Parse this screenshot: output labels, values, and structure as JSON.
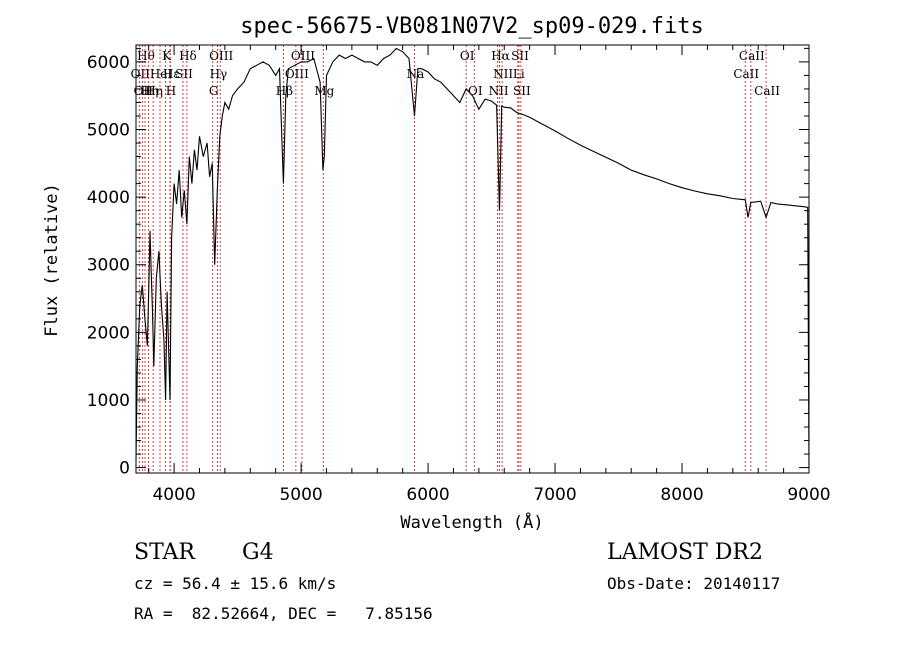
{
  "chart_data": {
    "type": "line",
    "title": "spec-56675-VB081N07V2_sp09-029.fits",
    "xlabel": "Wavelength (Å)",
    "ylabel": "Flux (relative)",
    "xlim": [
      3700,
      9000
    ],
    "ylim": [
      -80,
      6250
    ],
    "x_ticks": [
      4000,
      5000,
      6000,
      7000,
      8000,
      9000
    ],
    "x_tick_labels": [
      "4000",
      "5000",
      "6000",
      "7000",
      "8000",
      "9000"
    ],
    "y_ticks": [
      0,
      1000,
      2000,
      3000,
      4000,
      5000,
      6000
    ],
    "y_tick_labels": [
      "0",
      "1000",
      "2000",
      "3000",
      "4000",
      "5000",
      "6000"
    ],
    "grid": false,
    "spectrum": {
      "x": [
        3700,
        3710,
        3730,
        3750,
        3770,
        3790,
        3800,
        3810,
        3820,
        3830,
        3840,
        3860,
        3880,
        3900,
        3920,
        3933,
        3945,
        3968,
        3980,
        4000,
        4020,
        4040,
        4060,
        4080,
        4101,
        4120,
        4140,
        4160,
        4180,
        4200,
        4230,
        4260,
        4280,
        4300,
        4320,
        4340,
        4360,
        4380,
        4400,
        4430,
        4460,
        4500,
        4550,
        4600,
        4650,
        4700,
        4750,
        4800,
        4830,
        4861,
        4880,
        4900,
        4950,
        5000,
        5050,
        5100,
        5150,
        5172,
        5183,
        5200,
        5250,
        5300,
        5350,
        5400,
        5450,
        5500,
        5550,
        5600,
        5650,
        5700,
        5750,
        5800,
        5850,
        5893,
        5920,
        5950,
        6000,
        6050,
        6100,
        6150,
        6200,
        6250,
        6300,
        6350,
        6400,
        6450,
        6500,
        6540,
        6563,
        6580,
        6600,
        6650,
        6700,
        6750,
        6800,
        6900,
        7000,
        7100,
        7200,
        7300,
        7400,
        7500,
        7600,
        7700,
        7800,
        7900,
        8000,
        8100,
        8200,
        8300,
        8400,
        8498,
        8520,
        8542,
        8580,
        8620,
        8662,
        8700,
        8750,
        8800,
        8850,
        8900,
        8950,
        8990,
        9000
      ],
      "y": [
        100,
        1500,
        2400,
        2700,
        2200,
        1800,
        2600,
        3500,
        2900,
        2300,
        1500,
        2800,
        3200,
        2400,
        1900,
        1000,
        2600,
        1000,
        3400,
        4200,
        3900,
        4400,
        3700,
        4100,
        3600,
        4600,
        4200,
        4700,
        4400,
        4900,
        4600,
        4800,
        4300,
        4500,
        3000,
        4100,
        4900,
        5200,
        5400,
        5300,
        5500,
        5600,
        5700,
        5900,
        5950,
        6000,
        5950,
        5800,
        5900,
        4200,
        5500,
        5900,
        5950,
        6000,
        6000,
        6050,
        5700,
        4400,
        4600,
        5800,
        6000,
        6100,
        6050,
        6100,
        6050,
        6000,
        6000,
        5950,
        6050,
        6100,
        6200,
        6150,
        6050,
        5200,
        5900,
        5900,
        5850,
        5750,
        5700,
        5600,
        5500,
        5400,
        5600,
        5500,
        5300,
        5450,
        5420,
        5360,
        3800,
        5350,
        5330,
        5320,
        5250,
        5220,
        5180,
        5080,
        4980,
        4870,
        4770,
        4680,
        4590,
        4500,
        4400,
        4330,
        4270,
        4200,
        4140,
        4090,
        4050,
        4020,
        3980,
        3960,
        3700,
        3920,
        3930,
        3940,
        3700,
        3920,
        3900,
        3890,
        3880,
        3870,
        3860,
        3850,
        0
      ]
    },
    "line_markers": [
      {
        "x": 3726,
        "label": "OII",
        "row": 1
      },
      {
        "x": 3750,
        "label": "OII",
        "row": 2
      },
      {
        "x": 3771,
        "label": "Hθ",
        "row": 0
      },
      {
        "x": 3798,
        "label": "Hη",
        "row": 2
      },
      {
        "x": 3835,
        "label": "Hη",
        "row": 2
      },
      {
        "x": 3889,
        "label": "HeI",
        "row": 1
      },
      {
        "x": 3933,
        "label": "K",
        "row": 0
      },
      {
        "x": 3968,
        "label": "H",
        "row": 2
      },
      {
        "x": 3970,
        "label": "Hε",
        "row": 1
      },
      {
        "x": 4070,
        "label": "SII",
        "row": 1
      },
      {
        "x": 4101,
        "label": "Hδ",
        "row": 0
      },
      {
        "x": 4304,
        "label": "G",
        "row": 2
      },
      {
        "x": 4341,
        "label": "Hγ",
        "row": 1
      },
      {
        "x": 4363,
        "label": "OIII",
        "row": 0
      },
      {
        "x": 4861,
        "label": "Hβ",
        "row": 2
      },
      {
        "x": 4959,
        "label": "OIII",
        "row": 1
      },
      {
        "x": 5007,
        "label": "OIII",
        "row": 0
      },
      {
        "x": 5175,
        "label": "Mg",
        "row": 2
      },
      {
        "x": 5893,
        "label": "Na",
        "row": 1
      },
      {
        "x": 6300,
        "label": "OI",
        "row": 0
      },
      {
        "x": 6364,
        "label": "OI",
        "row": 2
      },
      {
        "x": 6548,
        "label": "NII",
        "row": 2
      },
      {
        "x": 6563,
        "label": "Hα",
        "row": 0
      },
      {
        "x": 6583,
        "label": "NII",
        "row": 1
      },
      {
        "x": 6707,
        "label": "Li",
        "row": 1
      },
      {
        "x": 6716,
        "label": "SII",
        "row": 0
      },
      {
        "x": 6731,
        "label": "SII",
        "row": 2
      },
      {
        "x": 8498,
        "label": "CaII",
        "row": 1
      },
      {
        "x": 8542,
        "label": "CaII",
        "row": 0
      },
      {
        "x": 8662,
        "label": "CaII",
        "row": 2
      }
    ]
  },
  "info": {
    "class_label": "STAR",
    "subclass": "G4",
    "cz_line": "cz = 56.4 ± 15.6 km/s",
    "radec_line": "RA =  82.52664, DEC =   7.85156",
    "survey": "LAMOST DR2",
    "obs_date_line": "Obs-Date: 20140117"
  }
}
